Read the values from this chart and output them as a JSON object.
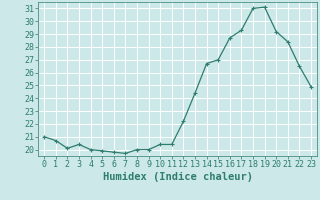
{
  "x": [
    0,
    1,
    2,
    3,
    4,
    5,
    6,
    7,
    8,
    9,
    10,
    11,
    12,
    13,
    14,
    15,
    16,
    17,
    18,
    19,
    20,
    21,
    22,
    23
  ],
  "y": [
    21.0,
    20.7,
    20.1,
    20.4,
    20.0,
    19.9,
    19.8,
    19.7,
    20.0,
    20.0,
    20.4,
    20.4,
    22.2,
    24.4,
    26.7,
    27.0,
    28.7,
    29.3,
    31.0,
    31.1,
    29.2,
    28.4,
    26.5,
    24.9
  ],
  "line_color": "#2e7d6e",
  "marker": "+",
  "marker_size": 3,
  "bg_color": "#cce8e8",
  "grid_color": "#ffffff",
  "xlabel": "Humidex (Indice chaleur)",
  "xlim": [
    -0.5,
    23.5
  ],
  "ylim": [
    19.5,
    31.5
  ],
  "yticks": [
    20,
    21,
    22,
    23,
    24,
    25,
    26,
    27,
    28,
    29,
    30,
    31
  ],
  "xticks": [
    0,
    1,
    2,
    3,
    4,
    5,
    6,
    7,
    8,
    9,
    10,
    11,
    12,
    13,
    14,
    15,
    16,
    17,
    18,
    19,
    20,
    21,
    22,
    23
  ],
  "tick_color": "#2e7d6e",
  "label_color": "#2e7d6e",
  "xlabel_fontsize": 7.5,
  "tick_fontsize": 6
}
